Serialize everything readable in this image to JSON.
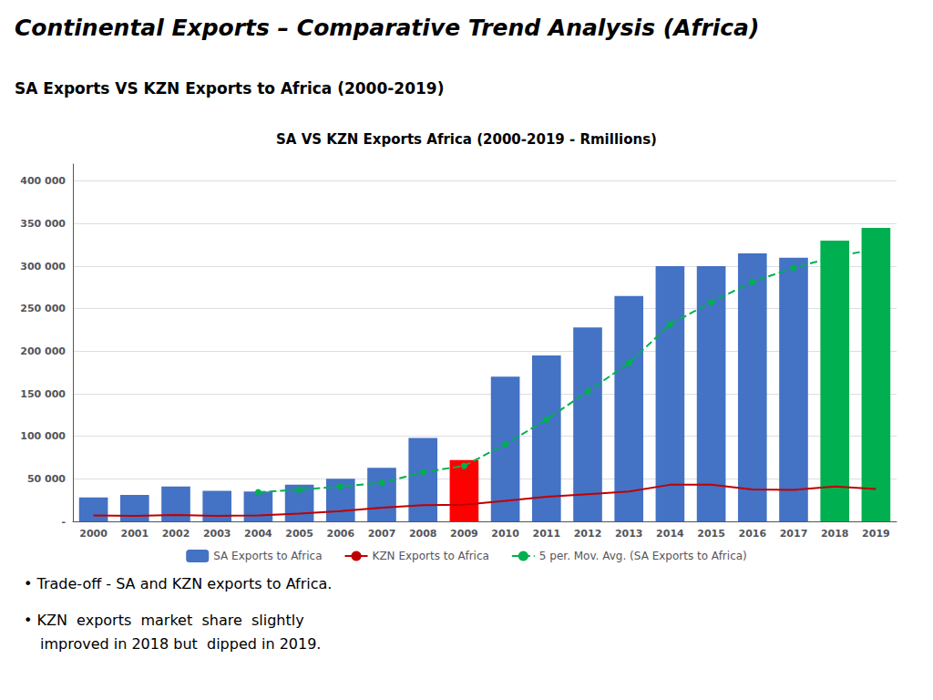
{
  "chart_data": {
    "type": "bar",
    "title": "SA VS KZN Exports Africa (2000-2019 - Rmillions)",
    "subtitle": "SA Exports VS KZN Exports to Africa (2000-2019)",
    "annotations": [
      "Continental Exports – Comparative Trend Analysis (Africa)",
      "• Trade-off - SA and KZN exports to Africa.",
      "• KZN  exports  market  share  slightly",
      "improved in 2018 but  dipped in 2019."
    ],
    "categories": [
      "2000",
      "2001",
      "2002",
      "2003",
      "2004",
      "2005",
      "2006",
      "2007",
      "2008",
      "2009",
      "2010",
      "2011",
      "2012",
      "2013",
      "2014",
      "2015",
      "2016",
      "2017",
      "2018",
      "2019"
    ],
    "series": [
      {
        "name": "SA Exports to Africa",
        "type": "bar",
        "color": "#4472C4",
        "colors": [
          "#4472C4",
          "#4472C4",
          "#4472C4",
          "#4472C4",
          "#4472C4",
          "#4472C4",
          "#4472C4",
          "#4472C4",
          "#4472C4",
          "#FF0000",
          "#4472C4",
          "#4472C4",
          "#4472C4",
          "#4472C4",
          "#4472C4",
          "#4472C4",
          "#4472C4",
          "#4472C4",
          "#00B050",
          "#00B050"
        ],
        "values": [
          28000,
          31000,
          41000,
          36000,
          35000,
          43000,
          50000,
          63000,
          98000,
          72000,
          170000,
          195000,
          228000,
          265000,
          300000,
          300000,
          315000,
          310000,
          330000,
          345000
        ]
      },
      {
        "name": "KZN Exports to Africa",
        "type": "line",
        "color": "#C00000",
        "line_style": "solid",
        "values": [
          7000,
          6500,
          7500,
          6500,
          7000,
          9000,
          12000,
          16000,
          19000,
          19500,
          24000,
          29000,
          32000,
          35000,
          43000,
          43000,
          37500,
          37000,
          41000,
          38000
        ]
      },
      {
        "name": "5 per. Mov. Avg. (SA Exports to Africa)",
        "type": "line",
        "color": "#00B050",
        "line_style": "dashed",
        "marker": "circle",
        "values": [
          null,
          null,
          null,
          null,
          34200,
          37200,
          41000,
          45400,
          57800,
          65200,
          90600,
          119600,
          152600,
          186000,
          231600,
          257600,
          281600,
          298000,
          311000,
          320000
        ]
      }
    ],
    "ylim": [
      0,
      420000
    ],
    "yticks": [
      {
        "value": 0,
        "label": "-"
      },
      {
        "value": 50000,
        "label": "50 000"
      },
      {
        "value": 100000,
        "label": "100 000"
      },
      {
        "value": 150000,
        "label": "150 000"
      },
      {
        "value": 200000,
        "label": "200 000"
      },
      {
        "value": 250000,
        "label": "250 000"
      },
      {
        "value": 300000,
        "label": "300 000"
      },
      {
        "value": 350000,
        "label": "350 000"
      },
      {
        "value": 400000,
        "label": "400 000"
      }
    ],
    "grid": true,
    "legend": "bottom"
  }
}
